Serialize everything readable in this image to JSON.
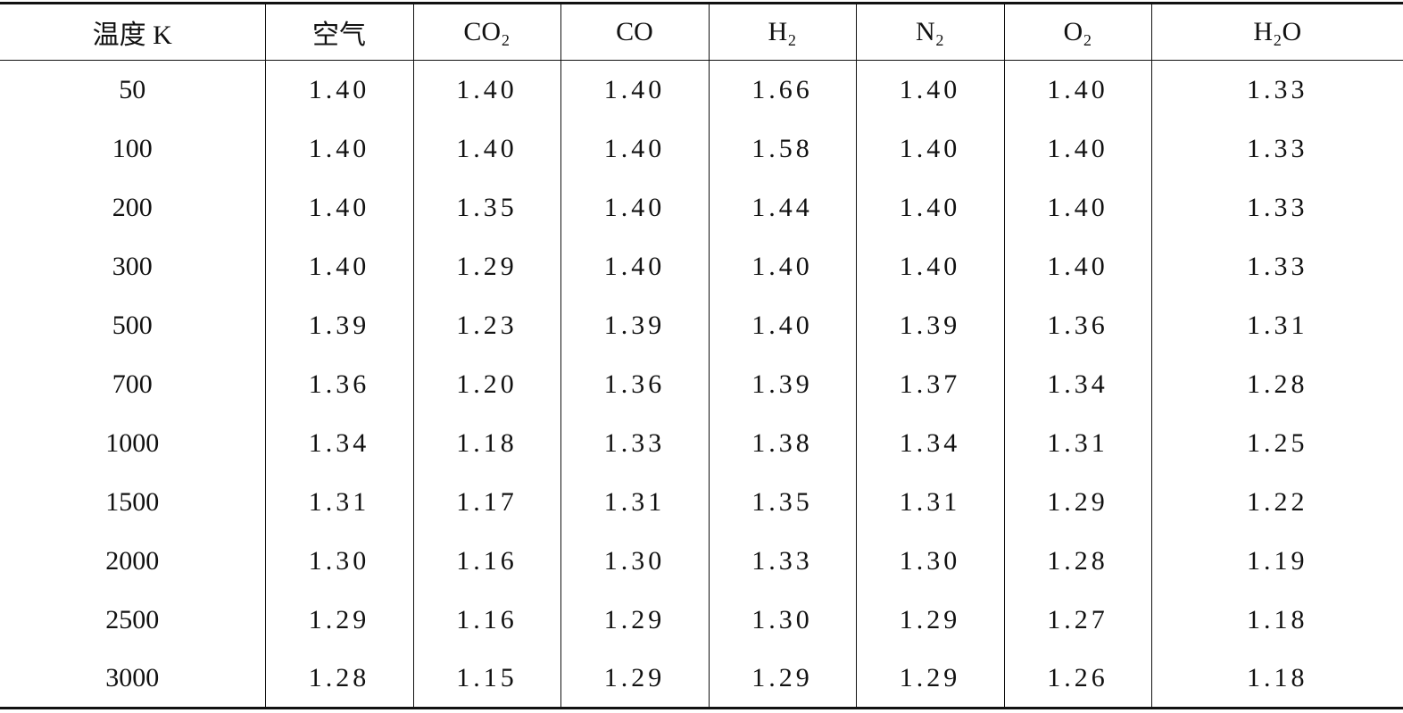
{
  "table": {
    "header": [
      "温度 K",
      "空气",
      "CO₂",
      "CO",
      "H₂",
      "N₂",
      "O₂",
      "H₂O"
    ],
    "rows": [
      [
        "50",
        "1.40",
        "1.40",
        "1.40",
        "1.66",
        "1.40",
        "1.40",
        "1.33"
      ],
      [
        "100",
        "1.40",
        "1.40",
        "1.40",
        "1.58",
        "1.40",
        "1.40",
        "1.33"
      ],
      [
        "200",
        "1.40",
        "1.35",
        "1.40",
        "1.44",
        "1.40",
        "1.40",
        "1.33"
      ],
      [
        "300",
        "1.40",
        "1.29",
        "1.40",
        "1.40",
        "1.40",
        "1.40",
        "1.33"
      ],
      [
        "500",
        "1.39",
        "1.23",
        "1.39",
        "1.40",
        "1.39",
        "1.36",
        "1.31"
      ],
      [
        "700",
        "1.36",
        "1.20",
        "1.36",
        "1.39",
        "1.37",
        "1.34",
        "1.28"
      ],
      [
        "1000",
        "1.34",
        "1.18",
        "1.33",
        "1.38",
        "1.34",
        "1.31",
        "1.25"
      ],
      [
        "1500",
        "1.31",
        "1.17",
        "1.31",
        "1.35",
        "1.31",
        "1.29",
        "1.22"
      ],
      [
        "2000",
        "1.30",
        "1.16",
        "1.30",
        "1.33",
        "1.30",
        "1.28",
        "1.19"
      ],
      [
        "2500",
        "1.29",
        "1.16",
        "1.29",
        "1.30",
        "1.29",
        "1.27",
        "1.18"
      ],
      [
        "3000",
        "1.28",
        "1.15",
        "1.29",
        "1.29",
        "1.29",
        "1.26",
        "1.18"
      ]
    ]
  }
}
